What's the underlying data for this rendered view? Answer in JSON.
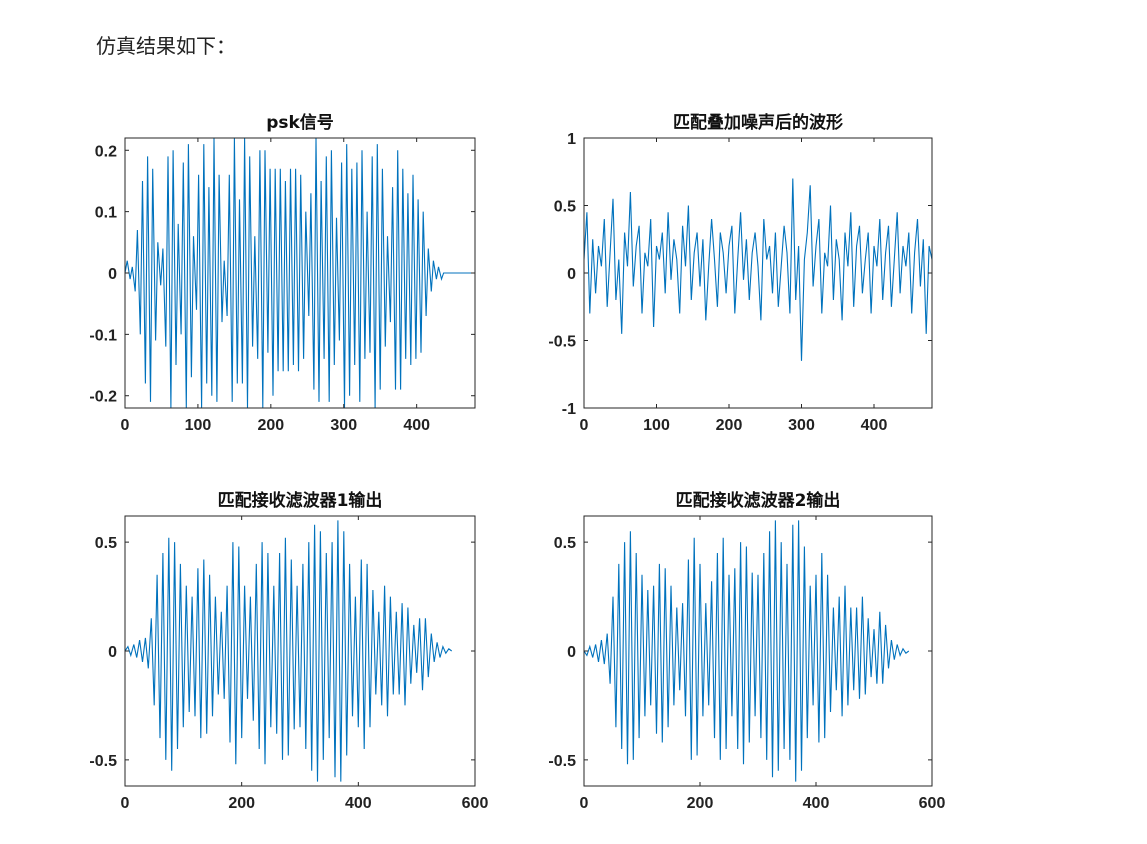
{
  "page": {
    "intro_text": "仿真结果如下："
  },
  "colors": {
    "line": "#0072BD",
    "axis": "#262626",
    "background": "#ffffff"
  },
  "chart_data": [
    {
      "type": "line",
      "title": "psk信号",
      "xlabel": "",
      "ylabel": "",
      "xlim": [
        0,
        480
      ],
      "ylim": [
        -0.22,
        0.22
      ],
      "xticks": [
        0,
        100,
        200,
        300,
        400
      ],
      "yticks": [
        -0.2,
        -0.1,
        0,
        0.1,
        0.2
      ],
      "xticklabels": [
        "0",
        "100",
        "200",
        "300",
        "400"
      ],
      "yticklabels": [
        "-0.2",
        "-0.1",
        "0",
        "0.1",
        "0.2"
      ],
      "grid": false,
      "description_of_series": "bandpass PSK waveform, approx 20 cycles, zero after x≈440",
      "series": [
        {
          "x": [
            0,
            3,
            7,
            10,
            14,
            17,
            21,
            24,
            28,
            31,
            35,
            38,
            42,
            45,
            49,
            52,
            56,
            59,
            63,
            66,
            70,
            73,
            77,
            80,
            84,
            87,
            91,
            94,
            98,
            101,
            105,
            108,
            112,
            115,
            119,
            122,
            126,
            129,
            133,
            136,
            140,
            143,
            147,
            150,
            154,
            157,
            161,
            164,
            168,
            171,
            175,
            178,
            182,
            185,
            189,
            192,
            196,
            199,
            203,
            206,
            210,
            213,
            217,
            220,
            224,
            227,
            231,
            234,
            238,
            241,
            245,
            248,
            252,
            255,
            259,
            262,
            266,
            269,
            273,
            276,
            280,
            283,
            287,
            290,
            294,
            297,
            301,
            304,
            308,
            311,
            315,
            318,
            322,
            325,
            329,
            332,
            336,
            339,
            343,
            346,
            350,
            353,
            357,
            360,
            364,
            367,
            371,
            374,
            378,
            381,
            385,
            388,
            392,
            395,
            399,
            402,
            406,
            409,
            413,
            416,
            420,
            423,
            427,
            430,
            434,
            437,
            441,
            444,
            448,
            480
          ],
          "y": [
            0,
            0.02,
            -0.01,
            0.01,
            -0.03,
            0.07,
            -0.1,
            0.15,
            -0.18,
            0.19,
            -0.21,
            0.17,
            -0.11,
            0.05,
            -0.02,
            0.04,
            -0.12,
            0.19,
            -0.22,
            0.2,
            -0.15,
            0.08,
            -0.1,
            0.18,
            -0.22,
            0.21,
            -0.17,
            0.06,
            -0.06,
            0.16,
            -0.22,
            0.21,
            -0.18,
            0.14,
            -0.2,
            0.22,
            -0.21,
            0.16,
            -0.08,
            0.02,
            -0.07,
            0.16,
            -0.21,
            0.22,
            -0.18,
            0.12,
            -0.18,
            0.22,
            -0.22,
            0.19,
            -0.12,
            0.06,
            -0.14,
            0.2,
            -0.22,
            0.2,
            -0.13,
            0.17,
            -0.2,
            0.17,
            -0.16,
            0.17,
            -0.16,
            0.15,
            -0.16,
            0.17,
            -0.15,
            0.17,
            -0.16,
            0.16,
            -0.14,
            0.1,
            -0.07,
            0.13,
            -0.19,
            0.22,
            -0.21,
            0.15,
            -0.14,
            0.19,
            -0.21,
            0.2,
            -0.15,
            0.09,
            -0.11,
            0.18,
            -0.22,
            0.21,
            -0.2,
            0.17,
            -0.15,
            0.18,
            -0.21,
            0.2,
            -0.14,
            0.1,
            -0.13,
            0.19,
            -0.22,
            0.21,
            -0.19,
            0.17,
            -0.12,
            0.06,
            -0.08,
            0.14,
            -0.19,
            0.2,
            -0.19,
            0.17,
            -0.14,
            0.13,
            -0.15,
            0.16,
            -0.14,
            0.12,
            -0.13,
            0.1,
            -0.07,
            0.04,
            -0.03,
            0.02,
            -0.01,
            0.01,
            -0.01,
            0,
            0,
            0,
            0,
            0
          ]
        }
      ]
    },
    {
      "type": "line",
      "title": "匹配叠加噪声后的波形",
      "xlabel": "",
      "ylabel": "",
      "xlim": [
        0,
        480
      ],
      "ylim": [
        -1,
        1
      ],
      "xticks": [
        0,
        100,
        200,
        300,
        400
      ],
      "yticks": [
        -1,
        -0.5,
        0,
        0.5,
        1
      ],
      "xticklabels": [
        "0",
        "100",
        "200",
        "300",
        "400"
      ],
      "yticklabels": [
        "-1",
        "-0.5",
        "0",
        "0.5",
        "1"
      ],
      "grid": false,
      "series": [
        {
          "x": [
            0,
            4,
            8,
            12,
            16,
            20,
            24,
            28,
            32,
            36,
            40,
            44,
            48,
            52,
            56,
            60,
            64,
            68,
            72,
            76,
            80,
            84,
            88,
            92,
            96,
            100,
            104,
            108,
            112,
            116,
            120,
            124,
            128,
            132,
            136,
            140,
            144,
            148,
            152,
            156,
            160,
            164,
            168,
            172,
            176,
            180,
            184,
            188,
            192,
            196,
            200,
            204,
            208,
            212,
            216,
            220,
            224,
            228,
            232,
            236,
            240,
            244,
            248,
            252,
            256,
            260,
            264,
            268,
            272,
            276,
            280,
            284,
            288,
            292,
            296,
            300,
            304,
            308,
            312,
            316,
            320,
            324,
            328,
            332,
            336,
            340,
            344,
            348,
            352,
            356,
            360,
            364,
            368,
            372,
            376,
            380,
            384,
            388,
            392,
            396,
            400,
            404,
            408,
            412,
            416,
            420,
            424,
            428,
            432,
            436,
            440,
            444,
            448,
            452,
            456,
            460,
            464,
            468,
            472,
            476,
            480
          ],
          "y": [
            0.1,
            0.45,
            -0.3,
            0.25,
            -0.15,
            0.2,
            0.05,
            0.4,
            -0.25,
            0.15,
            0.55,
            -0.2,
            0.1,
            -0.45,
            0.3,
            0.05,
            0.6,
            -0.1,
            0.2,
            0.35,
            -0.3,
            0.15,
            0.05,
            0.4,
            -0.4,
            0.2,
            0.1,
            0.3,
            -0.15,
            0.45,
            -0.05,
            0.25,
            0.1,
            -0.3,
            0.35,
            0.05,
            0.5,
            -0.2,
            0.15,
            0.3,
            -0.1,
            0.25,
            -0.35,
            0.05,
            0.4,
            0.1,
            -0.25,
            0.3,
            0.15,
            -0.15,
            0.2,
            0.35,
            -0.3,
            0.1,
            0.45,
            -0.05,
            0.25,
            -0.2,
            0.15,
            0.3,
            0.05,
            -0.35,
            0.4,
            0.1,
            0.2,
            -0.15,
            0.3,
            -0.25,
            0.05,
            0.35,
            0.15,
            -0.3,
            0.7,
            -0.2,
            0.2,
            -0.65,
            0.1,
            0.3,
            0.65,
            -0.1,
            0.2,
            0.4,
            -0.3,
            0.15,
            0.05,
            0.5,
            -0.2,
            0.25,
            0.1,
            -0.35,
            0.3,
            0.05,
            0.45,
            -0.25,
            0.2,
            0.35,
            -0.15,
            0.1,
            0.3,
            -0.3,
            0.2,
            0.05,
            0.4,
            -0.2,
            0.15,
            0.35,
            -0.25,
            0.1,
            0.45,
            -0.15,
            0.2,
            0.05,
            0.3,
            -0.3,
            0.15,
            0.4,
            -0.1,
            0.25,
            -0.45,
            0.2,
            0.1
          ]
        }
      ]
    },
    {
      "type": "line",
      "title": "匹配接收滤波器1输出",
      "xlabel": "",
      "ylabel": "",
      "xlim": [
        0,
        600
      ],
      "ylim": [
        -0.62,
        0.62
      ],
      "xticks": [
        0,
        200,
        400,
        600
      ],
      "yticks": [
        -0.5,
        0,
        0.5
      ],
      "xticklabels": [
        "0",
        "200",
        "400",
        "600"
      ],
      "yticklabels": [
        "-0.5",
        "0",
        "0.5"
      ],
      "grid": false,
      "series": [
        {
          "x": [
            0,
            5,
            10,
            15,
            20,
            25,
            30,
            35,
            40,
            45,
            50,
            55,
            60,
            65,
            70,
            75,
            80,
            85,
            90,
            95,
            100,
            105,
            110,
            115,
            120,
            125,
            130,
            135,
            140,
            145,
            150,
            155,
            160,
            165,
            170,
            175,
            180,
            185,
            190,
            195,
            200,
            205,
            210,
            215,
            220,
            225,
            230,
            235,
            240,
            245,
            250,
            255,
            260,
            265,
            270,
            275,
            280,
            285,
            290,
            295,
            300,
            305,
            310,
            315,
            320,
            325,
            330,
            335,
            340,
            345,
            350,
            355,
            360,
            365,
            370,
            375,
            380,
            385,
            390,
            395,
            400,
            405,
            410,
            415,
            420,
            425,
            430,
            435,
            440,
            445,
            450,
            455,
            460,
            465,
            470,
            475,
            480,
            485,
            490,
            495,
            500,
            505,
            510,
            515,
            520,
            525,
            530,
            535,
            540,
            545,
            550,
            555,
            560
          ],
          "y": [
            0,
            0.02,
            -0.02,
            0.03,
            -0.03,
            0.05,
            -0.05,
            0.06,
            -0.08,
            0.15,
            -0.25,
            0.35,
            -0.4,
            0.45,
            -0.5,
            0.52,
            -0.55,
            0.5,
            -0.45,
            0.4,
            -0.35,
            0.3,
            -0.28,
            0.25,
            -0.3,
            0.38,
            -0.4,
            0.42,
            -0.38,
            0.35,
            -0.3,
            0.25,
            -0.2,
            0.18,
            -0.22,
            0.3,
            -0.42,
            0.5,
            -0.52,
            0.48,
            -0.4,
            0.3,
            -0.22,
            0.25,
            -0.32,
            0.4,
            -0.45,
            0.5,
            -0.52,
            0.45,
            -0.35,
            0.3,
            -0.38,
            0.45,
            -0.5,
            0.52,
            -0.48,
            0.42,
            -0.36,
            0.3,
            -0.35,
            0.4,
            -0.45,
            0.5,
            -0.55,
            0.58,
            -0.6,
            0.55,
            -0.5,
            0.45,
            -0.4,
            0.5,
            -0.58,
            0.6,
            -0.6,
            0.55,
            -0.48,
            0.4,
            -0.3,
            0.25,
            -0.35,
            0.42,
            -0.45,
            0.4,
            -0.35,
            0.28,
            -0.2,
            0.18,
            -0.25,
            0.3,
            -0.3,
            0.25,
            -0.2,
            0.18,
            -0.2,
            0.22,
            -0.25,
            0.2,
            -0.15,
            0.12,
            -0.1,
            0.15,
            -0.18,
            0.15,
            -0.12,
            0.08,
            -0.05,
            0.04,
            -0.03,
            0.02,
            -0.01,
            0.01,
            0
          ]
        }
      ]
    },
    {
      "type": "line",
      "title": "匹配接收滤波器2输出",
      "xlabel": "",
      "ylabel": "",
      "xlim": [
        0,
        600
      ],
      "ylim": [
        -0.62,
        0.62
      ],
      "xticks": [
        0,
        200,
        400,
        600
      ],
      "yticks": [
        -0.5,
        0,
        0.5
      ],
      "xticklabels": [
        "0",
        "200",
        "400",
        "600"
      ],
      "yticklabels": [
        "-0.5",
        "0",
        "0.5"
      ],
      "grid": false,
      "series": [
        {
          "x": [
            0,
            5,
            10,
            15,
            20,
            25,
            30,
            35,
            40,
            45,
            50,
            55,
            60,
            65,
            70,
            75,
            80,
            85,
            90,
            95,
            100,
            105,
            110,
            115,
            120,
            125,
            130,
            135,
            140,
            145,
            150,
            155,
            160,
            165,
            170,
            175,
            180,
            185,
            190,
            195,
            200,
            205,
            210,
            215,
            220,
            225,
            230,
            235,
            240,
            245,
            250,
            255,
            260,
            265,
            270,
            275,
            280,
            285,
            290,
            295,
            300,
            305,
            310,
            315,
            320,
            325,
            330,
            335,
            340,
            345,
            350,
            355,
            360,
            365,
            370,
            375,
            380,
            385,
            390,
            395,
            400,
            405,
            410,
            415,
            420,
            425,
            430,
            435,
            440,
            445,
            450,
            455,
            460,
            465,
            470,
            475,
            480,
            485,
            490,
            495,
            500,
            505,
            510,
            515,
            520,
            525,
            530,
            535,
            540,
            545,
            550,
            555,
            560
          ],
          "y": [
            0,
            -0.02,
            0.02,
            -0.03,
            0.03,
            -0.05,
            0.05,
            -0.06,
            0.08,
            -0.15,
            0.25,
            -0.35,
            0.4,
            -0.45,
            0.5,
            -0.52,
            0.55,
            -0.5,
            0.45,
            -0.4,
            0.35,
            -0.3,
            0.28,
            -0.25,
            0.3,
            -0.38,
            0.4,
            -0.42,
            0.38,
            -0.35,
            0.3,
            -0.25,
            0.2,
            -0.18,
            0.22,
            -0.3,
            0.42,
            -0.5,
            0.52,
            -0.48,
            0.4,
            -0.3,
            0.22,
            -0.25,
            0.32,
            -0.4,
            0.45,
            -0.5,
            0.52,
            -0.45,
            0.35,
            -0.3,
            0.38,
            -0.45,
            0.5,
            -0.52,
            0.48,
            -0.42,
            0.36,
            -0.3,
            0.35,
            -0.4,
            0.45,
            -0.5,
            0.55,
            -0.58,
            0.6,
            -0.55,
            0.5,
            -0.45,
            0.4,
            -0.5,
            0.58,
            -0.6,
            0.6,
            -0.55,
            0.48,
            -0.4,
            0.3,
            -0.25,
            0.35,
            -0.42,
            0.45,
            -0.4,
            0.35,
            -0.28,
            0.2,
            -0.18,
            0.25,
            -0.3,
            0.3,
            -0.25,
            0.2,
            -0.18,
            0.2,
            -0.22,
            0.25,
            -0.2,
            0.15,
            -0.12,
            0.1,
            -0.15,
            0.18,
            -0.15,
            0.12,
            -0.08,
            0.05,
            -0.04,
            0.03,
            -0.02,
            0.01,
            -0.01,
            0
          ]
        }
      ]
    }
  ]
}
